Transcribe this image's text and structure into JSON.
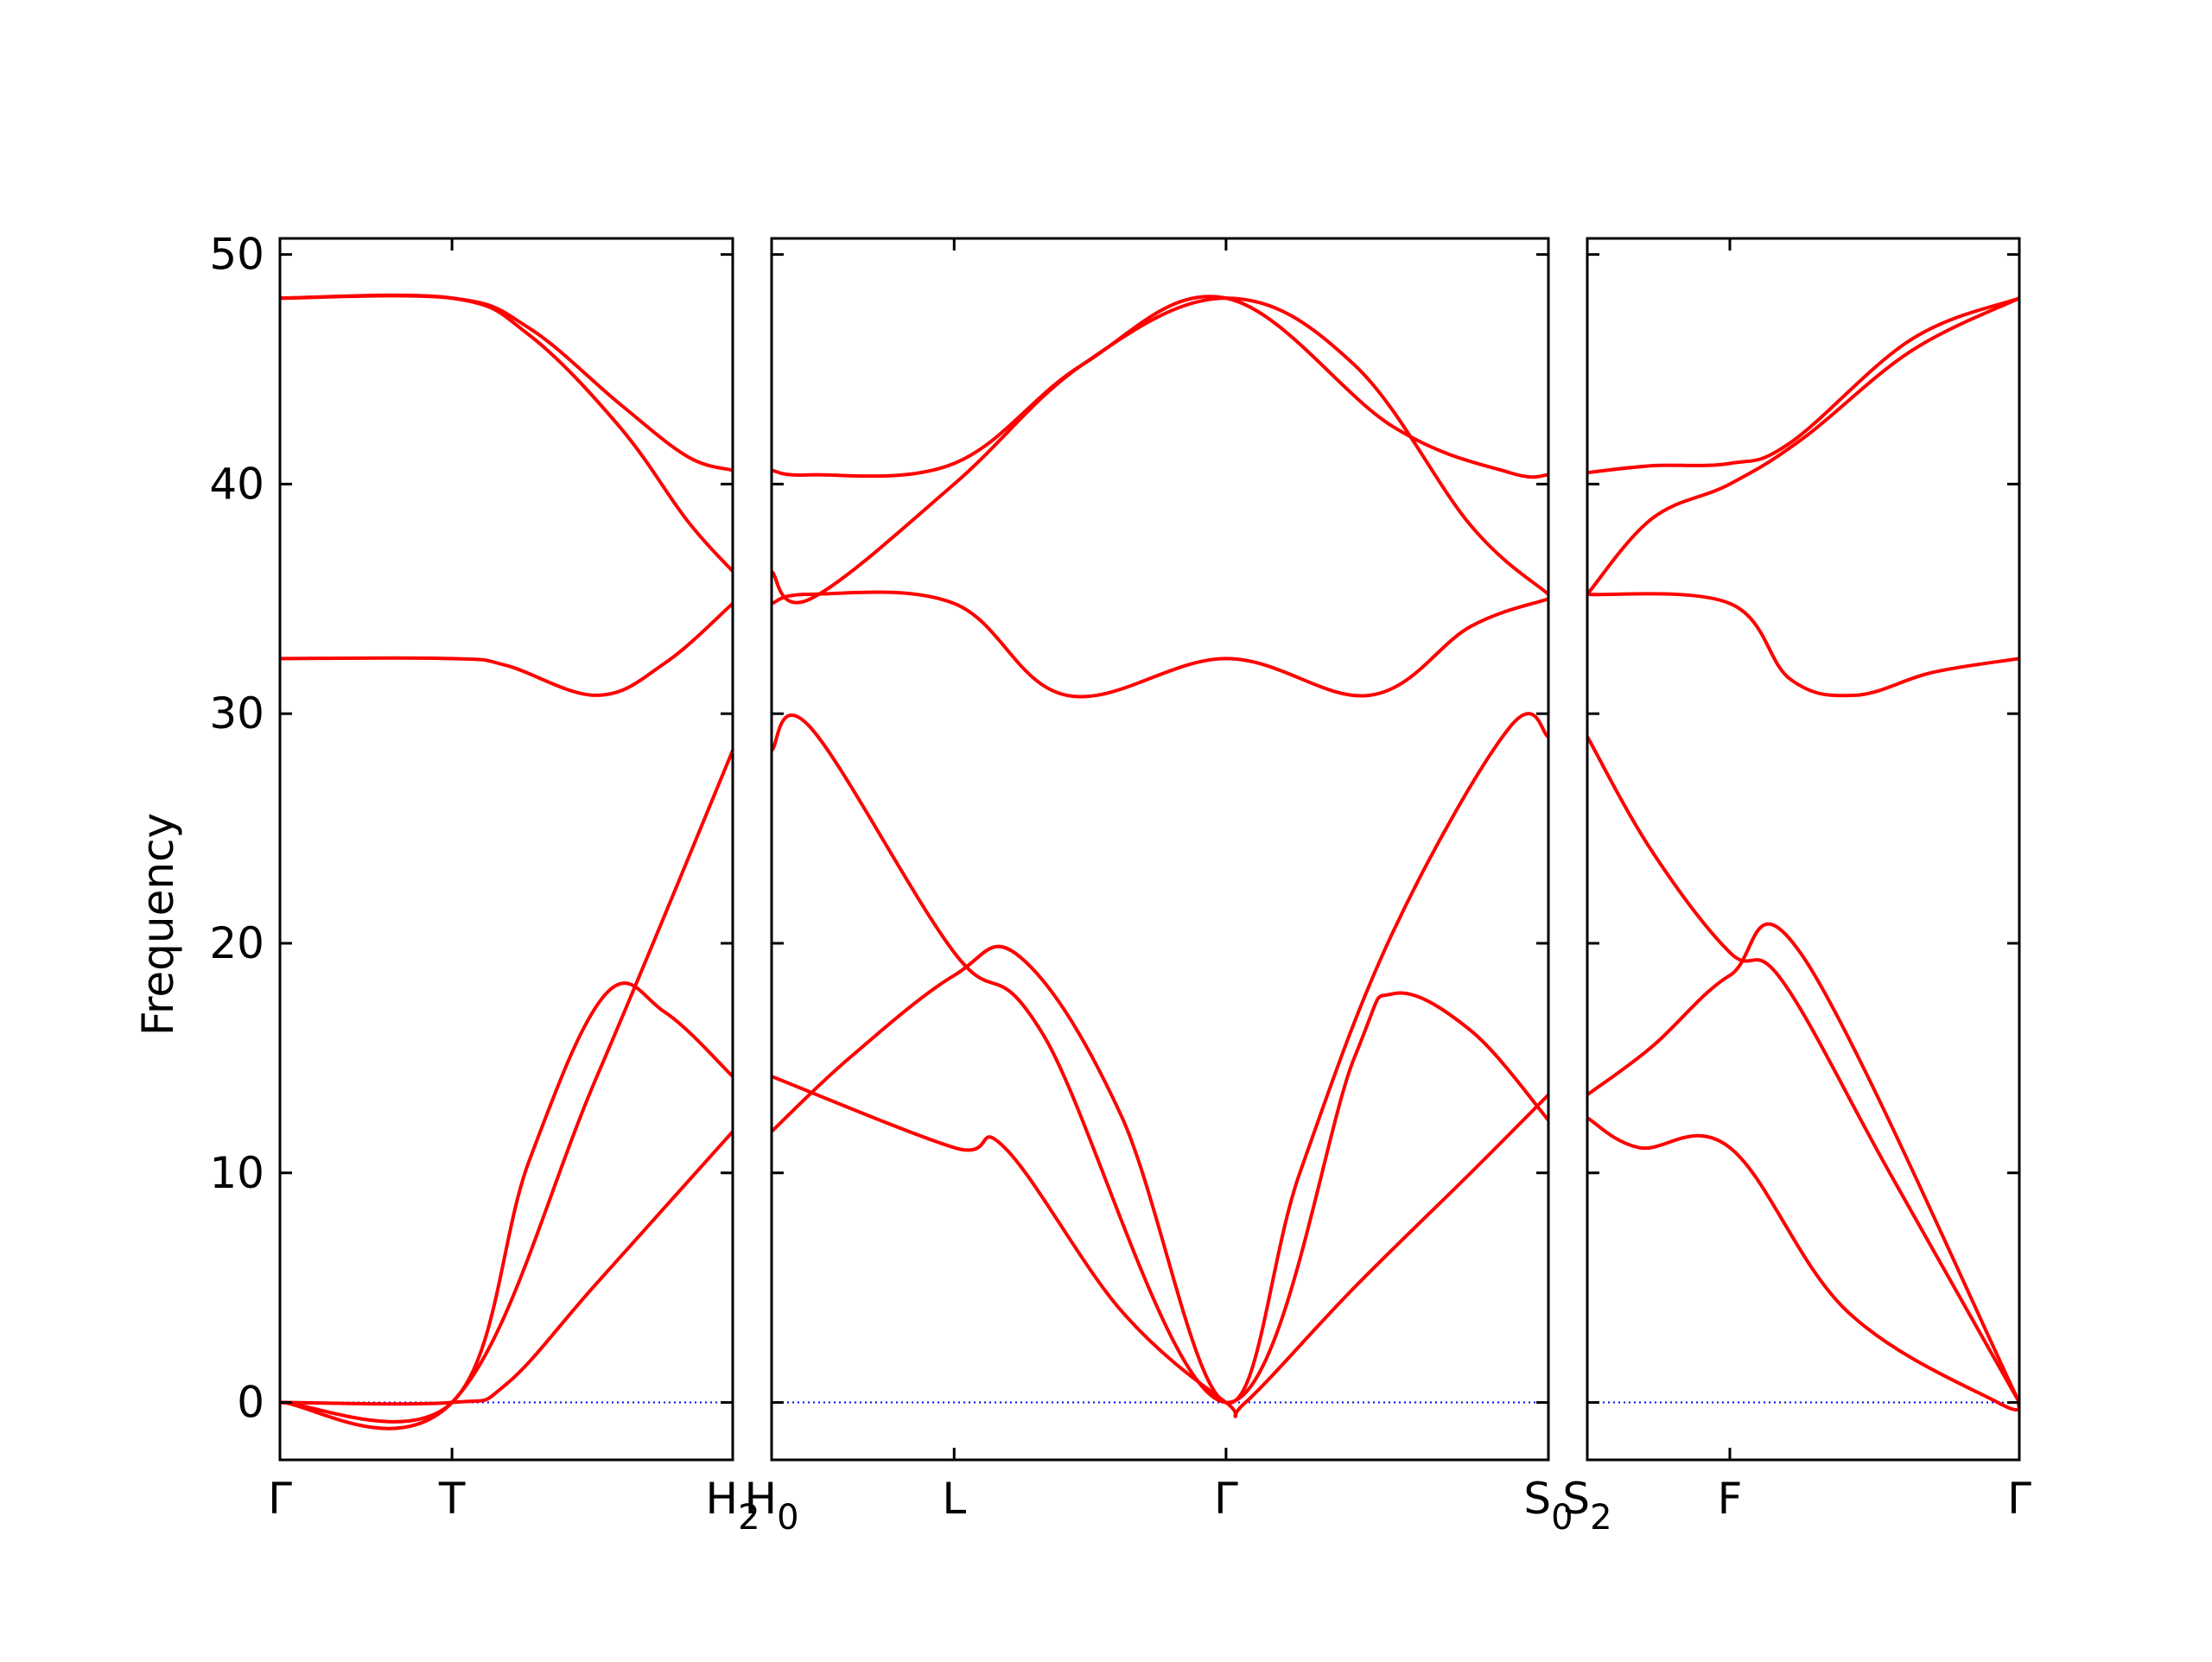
{
  "chart_data": {
    "type": "line",
    "title": "",
    "ylabel": "Frequency",
    "ylim": [
      -2.5,
      50.7
    ],
    "yticks": [
      0,
      10,
      20,
      30,
      40,
      50
    ],
    "grid": false,
    "band_color": "#ff0000",
    "zero_line_color": "#0000ff",
    "panels": [
      {
        "xticks": [
          {
            "x": 0.0,
            "label": "Γ"
          },
          {
            "x": 0.38,
            "label": "T"
          },
          {
            "x": 1.0,
            "label": "H",
            "sub": "2"
          }
        ],
        "series": [
          {
            "name": "band1",
            "x": [
              0,
              0.38,
              0.5,
              0.7,
              1.0
            ],
            "y": [
              0,
              0,
              0.8,
              5.2,
              11.8
            ]
          },
          {
            "name": "band2",
            "x": [
              0,
              0.38,
              0.7,
              1.0
            ],
            "y": [
              0,
              0,
              14.2,
              28.4
            ]
          },
          {
            "name": "band3",
            "x": [
              0,
              0.38,
              0.55,
              0.72,
              0.85,
              1.0
            ],
            "y": [
              0,
              0,
              10.5,
              17.8,
              17.0,
              14.2
            ]
          },
          {
            "name": "band4",
            "x": [
              0,
              0.38,
              0.5,
              0.7,
              0.85,
              1.0
            ],
            "y": [
              32.4,
              32.4,
              32.1,
              30.8,
              32.2,
              34.8
            ]
          },
          {
            "name": "band5",
            "x": [
              0,
              0.38,
              0.55,
              0.75,
              0.9,
              1.0
            ],
            "y": [
              48.1,
              48.1,
              46.8,
              43.5,
              41.2,
              40.6
            ]
          },
          {
            "name": "band6",
            "x": [
              0,
              0.38,
              0.55,
              0.75,
              0.9,
              1.0
            ],
            "y": [
              48.1,
              48.1,
              46.5,
              42.5,
              38.4,
              36.2
            ]
          }
        ]
      },
      {
        "xticks": [
          {
            "x": 0.0,
            "label": "H",
            "sub": "0"
          },
          {
            "x": 0.235,
            "label": "L"
          },
          {
            "x": 0.585,
            "label": "Γ"
          },
          {
            "x": 1.0,
            "label": "S",
            "sub": "0"
          }
        ],
        "series": [
          {
            "name": "band1",
            "x": [
              0,
              0.235,
              0.3,
              0.45,
              0.585,
              0.61,
              0.75,
              0.9,
              1.0
            ],
            "y": [
              14.2,
              11.1,
              11.1,
              4.0,
              0,
              0,
              5.0,
              10.0,
              13.4
            ]
          },
          {
            "name": "band2",
            "x": [
              0,
              0.1,
              0.235,
              0.32,
              0.45,
              0.585,
              0.68,
              0.8,
              0.95,
              1.0
            ],
            "y": [
              11.8,
              15.0,
              18.6,
              19.4,
              12.5,
              0,
              10.0,
              20.5,
              29.4,
              29.0
            ]
          },
          {
            "name": "band3",
            "x": [
              0,
              0.05,
              0.235,
              0.35,
              0.585,
              0.75,
              0.8,
              0.9,
              1.0
            ],
            "y": [
              28.4,
              29.4,
              19.6,
              16.0,
              0,
              15.0,
              17.8,
              16.2,
              12.3
            ]
          },
          {
            "name": "band4",
            "x": [
              0,
              0.05,
              0.235,
              0.38,
              0.585,
              0.77,
              0.9,
              1.0
            ],
            "y": [
              34.8,
              35.2,
              34.8,
              30.8,
              32.4,
              30.8,
              33.8,
              35.0
            ]
          },
          {
            "name": "band5",
            "x": [
              0,
              0.05,
              0.235,
              0.4,
              0.585,
              0.75,
              0.9,
              1.0
            ],
            "y": [
              36.2,
              35.0,
              40.0,
              45.2,
              48.1,
              45.2,
              38.2,
              35.2
            ]
          },
          {
            "name": "band6",
            "x": [
              0,
              0.05,
              0.235,
              0.4,
              0.585,
              0.8,
              0.95,
              1.0
            ],
            "y": [
              40.6,
              40.4,
              40.9,
              45.2,
              48.1,
              42.5,
              40.5,
              40.4
            ]
          }
        ]
      },
      {
        "xticks": [
          {
            "x": 0.0,
            "label": "S",
            "sub": "2"
          },
          {
            "x": 0.33,
            "label": "F"
          },
          {
            "x": 1.0,
            "label": "Γ"
          }
        ],
        "series": [
          {
            "name": "band1",
            "x": [
              0,
              0.12,
              0.33,
              0.6,
              0.95,
              1.0
            ],
            "y": [
              12.4,
              11.1,
              11.1,
              4.0,
              0,
              0
            ]
          },
          {
            "name": "band2",
            "x": [
              0,
              0.15,
              0.33,
              0.5,
              1.0
            ],
            "y": [
              13.4,
              15.5,
              18.6,
              19.4,
              0
            ]
          },
          {
            "name": "band3",
            "x": [
              0,
              0.15,
              0.33,
              0.45,
              0.7,
              1.0
            ],
            "y": [
              29.0,
              24.0,
              19.6,
              18.4,
              10.0,
              0
            ]
          },
          {
            "name": "band4",
            "x": [
              0,
              0.33,
              0.47,
              0.62,
              0.8,
              1.0
            ],
            "y": [
              35.2,
              34.8,
              31.5,
              30.8,
              31.8,
              32.4
            ]
          },
          {
            "name": "band5",
            "x": [
              0,
              0.15,
              0.33,
              0.5,
              0.75,
              1.0
            ],
            "y": [
              35.2,
              38.5,
              40.0,
              42.0,
              45.8,
              48.1
            ]
          },
          {
            "name": "band6",
            "x": [
              0,
              0.15,
              0.33,
              0.47,
              0.75,
              1.0
            ],
            "y": [
              40.5,
              40.8,
              40.9,
              41.8,
              46.3,
              48.1
            ]
          }
        ]
      }
    ]
  }
}
